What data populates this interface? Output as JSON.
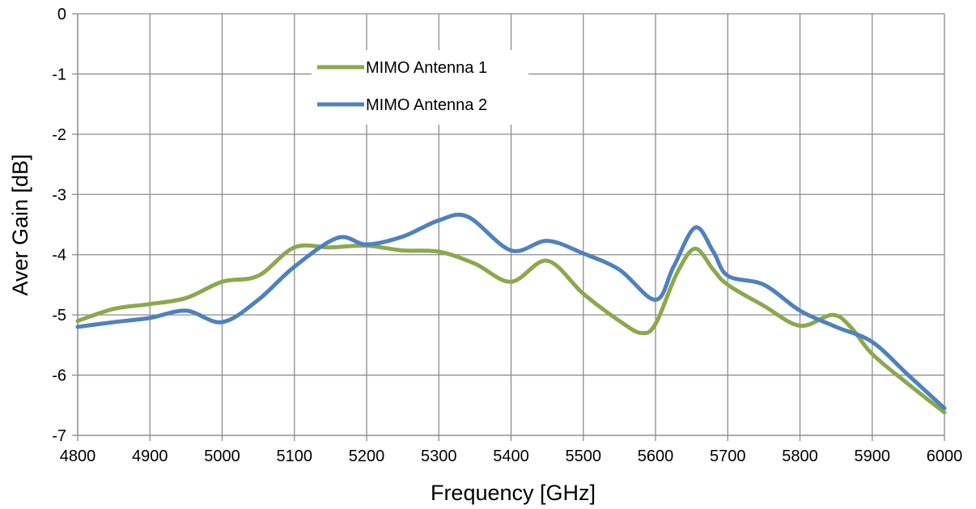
{
  "chart_data": {
    "type": "line",
    "xlabel": "Frequency [GHz]",
    "ylabel": "Aver Gain [dB]",
    "xlim": [
      4800,
      6000
    ],
    "ylim": [
      -7,
      0
    ],
    "x_ticks": [
      4800,
      4900,
      5000,
      5100,
      5200,
      5300,
      5400,
      5500,
      5600,
      5700,
      5800,
      5900,
      6000
    ],
    "y_ticks": [
      0,
      -1,
      -2,
      -3,
      -4,
      -5,
      -6,
      -7
    ],
    "grid": true,
    "legend_position": "top-center",
    "series": [
      {
        "name": "MIMO Antenna 1",
        "color": "#8CA84E",
        "x": [
          4800,
          4850,
          4900,
          4950,
          5000,
          5050,
          5100,
          5150,
          5200,
          5250,
          5300,
          5350,
          5400,
          5450,
          5500,
          5550,
          5580,
          5600,
          5630,
          5655,
          5680,
          5700,
          5750,
          5800,
          5845,
          5870,
          5900,
          5950,
          6000
        ],
        "y": [
          -5.1,
          -4.9,
          -4.82,
          -4.72,
          -4.45,
          -4.35,
          -3.88,
          -3.88,
          -3.85,
          -3.93,
          -3.95,
          -4.15,
          -4.45,
          -4.1,
          -4.65,
          -5.1,
          -5.3,
          -5.15,
          -4.3,
          -3.9,
          -4.25,
          -4.5,
          -4.85,
          -5.18,
          -5.0,
          -5.2,
          -5.65,
          -6.15,
          -6.62
        ]
      },
      {
        "name": "MIMO Antenna 2",
        "color": "#4F81BD",
        "x": [
          4800,
          4850,
          4900,
          4950,
          5000,
          5050,
          5100,
          5160,
          5200,
          5250,
          5300,
          5340,
          5400,
          5450,
          5500,
          5550,
          5600,
          5625,
          5655,
          5680,
          5700,
          5750,
          5800,
          5850,
          5900,
          5950,
          6000
        ],
        "y": [
          -5.2,
          -5.12,
          -5.05,
          -4.93,
          -5.12,
          -4.75,
          -4.2,
          -3.72,
          -3.83,
          -3.7,
          -3.43,
          -3.37,
          -3.93,
          -3.77,
          -3.98,
          -4.25,
          -4.75,
          -4.2,
          -3.55,
          -3.95,
          -4.35,
          -4.5,
          -4.93,
          -5.2,
          -5.45,
          -6.0,
          -6.55
        ]
      }
    ]
  }
}
